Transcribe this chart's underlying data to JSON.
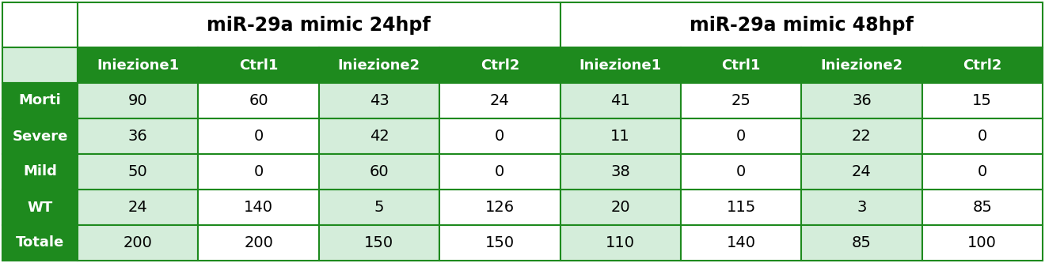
{
  "header1": "miR-29a mimic 24hpf",
  "header2": "miR-29a mimic 48hpf",
  "subheaders": [
    "Iniezione1",
    "Ctrl1",
    "Iniezione2",
    "Ctrl2",
    "Iniezione1",
    "Ctrl1",
    "Iniezione2",
    "Ctrl2"
  ],
  "row_labels": [
    "Morti",
    "Severe",
    "Mild",
    "WT",
    "Totale"
  ],
  "data": [
    [
      90,
      60,
      43,
      24,
      41,
      25,
      36,
      15
    ],
    [
      36,
      0,
      42,
      0,
      11,
      0,
      22,
      0
    ],
    [
      50,
      0,
      60,
      0,
      38,
      0,
      24,
      0
    ],
    [
      24,
      140,
      5,
      126,
      20,
      115,
      3,
      85
    ],
    [
      200,
      200,
      150,
      150,
      110,
      140,
      85,
      100
    ]
  ],
  "dark_green": "#1e8a1e",
  "light_green": "#d4edda",
  "white": "#ffffff",
  "border_color": "#1e8a1e",
  "header_fontsize": 17,
  "subheader_fontsize": 13,
  "label_fontsize": 13,
  "data_fontsize": 14,
  "figwidth": 13.2,
  "figheight": 3.33,
  "dpi": 100
}
